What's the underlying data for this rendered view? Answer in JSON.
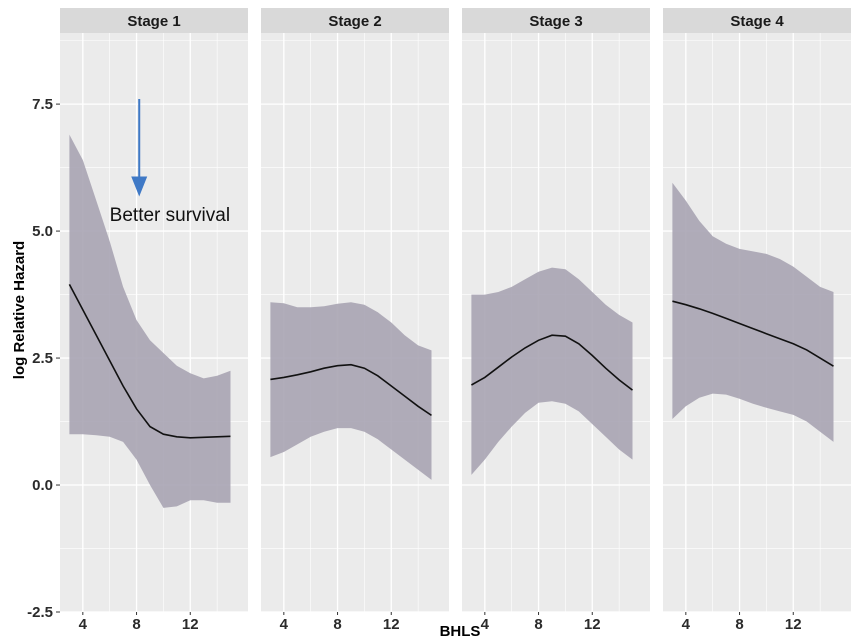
{
  "chart_data": {
    "type": "line",
    "xlabel": "BHLS",
    "ylabel": "log Relative Hazard",
    "xlim": [
      2.3,
      16.3
    ],
    "ylim": [
      -2.5,
      8.9
    ],
    "x_ticks": [
      4,
      8,
      12
    ],
    "y_ticks": [
      -2.5,
      0.0,
      2.5,
      5.0,
      7.5
    ],
    "y_tick_labels": [
      "-2.5",
      "0.0",
      "2.5",
      "5.0",
      "7.5"
    ],
    "grid": true,
    "colors": {
      "panel_bg": "#ebebeb",
      "strip_bg": "#d9d9d9",
      "grid": "#ffffff",
      "ribbon": "#a9a4b3",
      "line": "#111111",
      "arrow": "#3f79c6"
    },
    "panels": [
      {
        "strip": "Stage 1",
        "x": [
          3,
          4,
          5,
          6,
          7,
          8,
          9,
          10,
          11,
          12,
          13,
          14,
          15
        ],
        "fit": [
          3.95,
          3.45,
          2.95,
          2.45,
          1.95,
          1.5,
          1.15,
          1.0,
          0.95,
          0.93,
          0.94,
          0.95,
          0.96
        ],
        "upper": [
          6.9,
          6.4,
          5.6,
          4.8,
          3.9,
          3.25,
          2.85,
          2.6,
          2.35,
          2.2,
          2.1,
          2.15,
          2.25
        ],
        "lower": [
          1.0,
          1.0,
          0.98,
          0.95,
          0.85,
          0.5,
          0.0,
          -0.45,
          -0.42,
          -0.3,
          -0.3,
          -0.35,
          -0.35
        ]
      },
      {
        "strip": "Stage 2",
        "x": [
          3,
          4,
          5,
          6,
          7,
          8,
          9,
          10,
          11,
          12,
          13,
          14,
          15
        ],
        "fit": [
          2.08,
          2.12,
          2.17,
          2.23,
          2.3,
          2.35,
          2.37,
          2.3,
          2.15,
          1.95,
          1.75,
          1.55,
          1.37
        ],
        "upper": [
          3.6,
          3.58,
          3.5,
          3.5,
          3.52,
          3.57,
          3.6,
          3.55,
          3.4,
          3.2,
          2.95,
          2.75,
          2.65
        ],
        "lower": [
          0.55,
          0.65,
          0.8,
          0.95,
          1.05,
          1.12,
          1.12,
          1.05,
          0.9,
          0.7,
          0.5,
          0.3,
          0.1
        ]
      },
      {
        "strip": "Stage 3",
        "x": [
          3,
          4,
          5,
          6,
          7,
          8,
          9,
          10,
          11,
          12,
          13,
          14,
          15
        ],
        "fit": [
          1.97,
          2.12,
          2.32,
          2.52,
          2.7,
          2.85,
          2.95,
          2.93,
          2.78,
          2.55,
          2.3,
          2.07,
          1.87
        ],
        "upper": [
          3.75,
          3.75,
          3.8,
          3.9,
          4.05,
          4.2,
          4.28,
          4.25,
          4.05,
          3.8,
          3.55,
          3.35,
          3.2
        ],
        "lower": [
          0.2,
          0.5,
          0.85,
          1.15,
          1.42,
          1.62,
          1.65,
          1.6,
          1.45,
          1.2,
          0.95,
          0.7,
          0.5
        ]
      },
      {
        "strip": "Stage 4",
        "x": [
          3,
          4,
          5,
          6,
          7,
          8,
          9,
          10,
          11,
          12,
          13,
          14,
          15
        ],
        "fit": [
          3.62,
          3.55,
          3.47,
          3.38,
          3.28,
          3.18,
          3.08,
          2.98,
          2.88,
          2.78,
          2.66,
          2.5,
          2.34
        ],
        "upper": [
          5.95,
          5.6,
          5.2,
          4.9,
          4.75,
          4.65,
          4.6,
          4.55,
          4.45,
          4.3,
          4.1,
          3.9,
          3.8
        ],
        "lower": [
          1.3,
          1.55,
          1.72,
          1.8,
          1.78,
          1.7,
          1.6,
          1.52,
          1.45,
          1.38,
          1.25,
          1.05,
          0.85
        ]
      }
    ],
    "annotation": {
      "panel": 0,
      "text": "Better survival",
      "arrow_x": 8.2,
      "arrow_from_y": 7.6,
      "arrow_to_y": 5.8,
      "text_x": 6.0,
      "text_y": 5.2
    }
  }
}
